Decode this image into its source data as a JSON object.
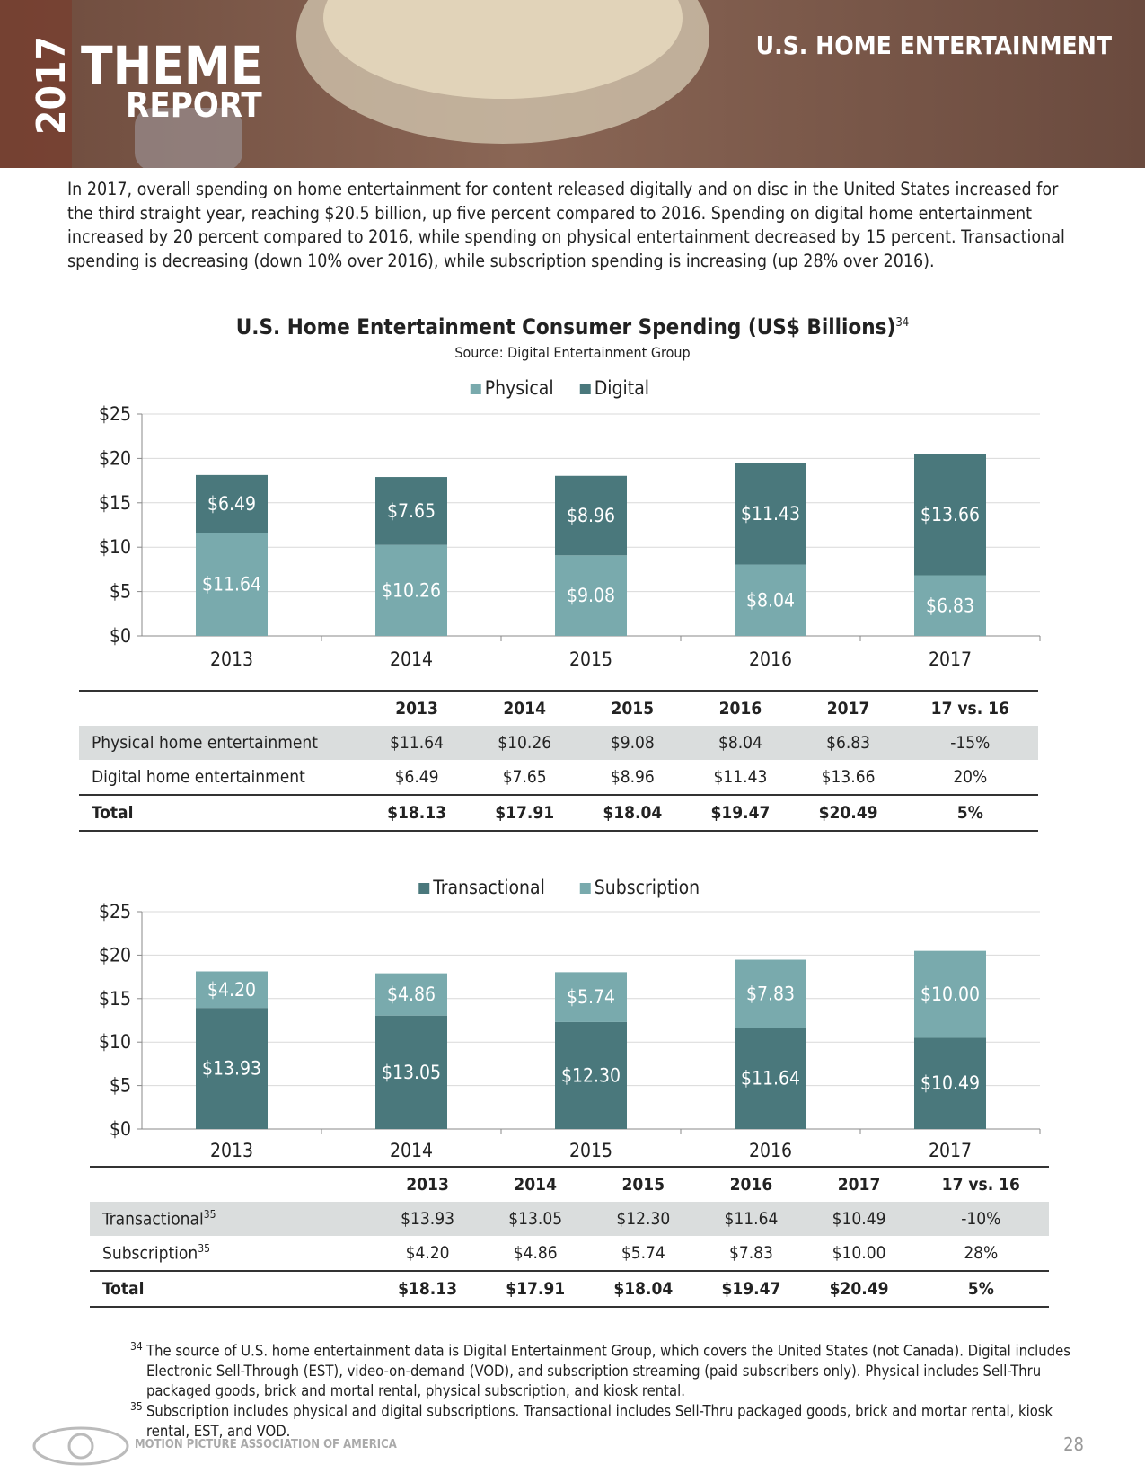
{
  "header": {
    "year": "2017",
    "theme": "THEME",
    "report": "REPORT",
    "section": "U.S. HOME ENTERTAINMENT"
  },
  "intro": "In 2017, overall spending on home entertainment for content released digitally and on disc in the United States increased for the third straight year, reaching $20.5 billion, up five percent compared to 2016. Spending on digital home entertainment increased by 20 percent compared to 2016, while spending on physical entertainment decreased by 15 percent. Transactional spending is decreasing (down 10% over 2016), while subscription spending is increasing (up 28% over 2016).",
  "title": "U.S. Home Entertainment Consumer Spending (US$ Billions)",
  "title_note": "34",
  "source": "Source: Digital Entertainment Group",
  "chart_data": [
    {
      "type": "bar",
      "stacked": true,
      "legend": "top",
      "grid": true,
      "categories": [
        "2013",
        "2014",
        "2015",
        "2016",
        "2017"
      ],
      "series": [
        {
          "name": "Physical",
          "color": "#79aaad",
          "values": [
            11.64,
            10.26,
            9.08,
            8.04,
            6.83
          ],
          "value_labels": [
            "$11.64",
            "$10.26",
            "$9.08",
            "$8.04",
            "$6.83"
          ]
        },
        {
          "name": "Digital",
          "color": "#4a787c",
          "values": [
            6.49,
            7.65,
            8.96,
            11.43,
            13.66
          ],
          "value_labels": [
            "$6.49",
            "$7.65",
            "$8.96",
            "$11.43",
            "$13.66"
          ]
        }
      ],
      "ylim": [
        0,
        25
      ],
      "yticks": [
        {
          "value": 0,
          "label": "$0"
        },
        {
          "value": 5,
          "label": "$5"
        },
        {
          "value": 10,
          "label": "$10"
        },
        {
          "value": 15,
          "label": "$15"
        },
        {
          "value": 20,
          "label": "$20"
        },
        {
          "value": 25,
          "label": "$25"
        }
      ]
    },
    {
      "type": "bar",
      "stacked": true,
      "legend": "top",
      "grid": true,
      "categories": [
        "2013",
        "2014",
        "2015",
        "2016",
        "2017"
      ],
      "series": [
        {
          "name": "Transactional",
          "color": "#4a787c",
          "values": [
            13.93,
            13.05,
            12.3,
            11.64,
            10.49
          ],
          "value_labels": [
            "$13.93",
            "$13.05",
            "$12.30",
            "$11.64",
            "$10.49"
          ]
        },
        {
          "name": "Subscription",
          "color": "#79aaad",
          "values": [
            4.2,
            4.86,
            5.74,
            7.83,
            10
          ],
          "value_labels": [
            "$4.20",
            "$4.86",
            "$5.74",
            "$7.83",
            "$10.00"
          ]
        }
      ],
      "ylim": [
        0,
        25
      ],
      "yticks": [
        {
          "value": 0,
          "label": "$0"
        },
        {
          "value": 5,
          "label": "$5"
        },
        {
          "value": 10,
          "label": "$10"
        },
        {
          "value": 15,
          "label": "$15"
        },
        {
          "value": 20,
          "label": "$20"
        },
        {
          "value": 25,
          "label": "$25"
        }
      ]
    }
  ],
  "tables": [
    {
      "columns": [
        "2013",
        "2014",
        "2015",
        "2016",
        "2017",
        "17 vs. 16"
      ],
      "rows": [
        {
          "label": "Physical home entertainment",
          "cells": [
            "$11.64",
            "$10.26",
            "$9.08",
            "$8.04",
            "$6.83",
            "-15%"
          ]
        },
        {
          "label": "Digital home entertainment",
          "cells": [
            "$6.49",
            "$7.65",
            "$8.96",
            "$11.43",
            "$13.66",
            "20%"
          ]
        },
        {
          "label": "Total",
          "cells": [
            "$18.13",
            "$17.91",
            "$18.04",
            "$19.47",
            "$20.49",
            "5%"
          ]
        }
      ]
    },
    {
      "columns": [
        "2013",
        "2014",
        "2015",
        "2016",
        "2017",
        "17 vs. 16"
      ],
      "rows": [
        {
          "label": "Transactional",
          "note": "35",
          "cells": [
            "$13.93",
            "$13.05",
            "$12.30",
            "$11.64",
            "$10.49",
            "-10%"
          ]
        },
        {
          "label": "Subscription",
          "note": "35",
          "cells": [
            "$4.20",
            "$4.86",
            "$5.74",
            "$7.83",
            "$10.00",
            "28%"
          ]
        },
        {
          "label": "Total",
          "cells": [
            "$18.13",
            "$17.91",
            "$18.04",
            "$19.47",
            "$20.49",
            "5%"
          ]
        }
      ]
    }
  ],
  "footnotes": [
    {
      "mark": "34",
      "text": "The source of U.S. home entertainment data is Digital Entertainment Group, which covers the United States (not Canada). Digital includes Electronic Sell-Through (EST), video-on-demand (VOD), and subscription streaming (paid subscribers only). Physical includes Sell-Thru packaged goods, brick and mortal rental, physical subscription, and kiosk rental."
    },
    {
      "mark": "35",
      "text": "Subscription includes physical and digital subscriptions. Transactional includes Sell-Thru packaged goods, brick and mortar rental, kiosk rental, EST, and VOD."
    }
  ],
  "logo": "MOTION PICTURE ASSOCIATION OF AMERICA",
  "page_number": "28"
}
